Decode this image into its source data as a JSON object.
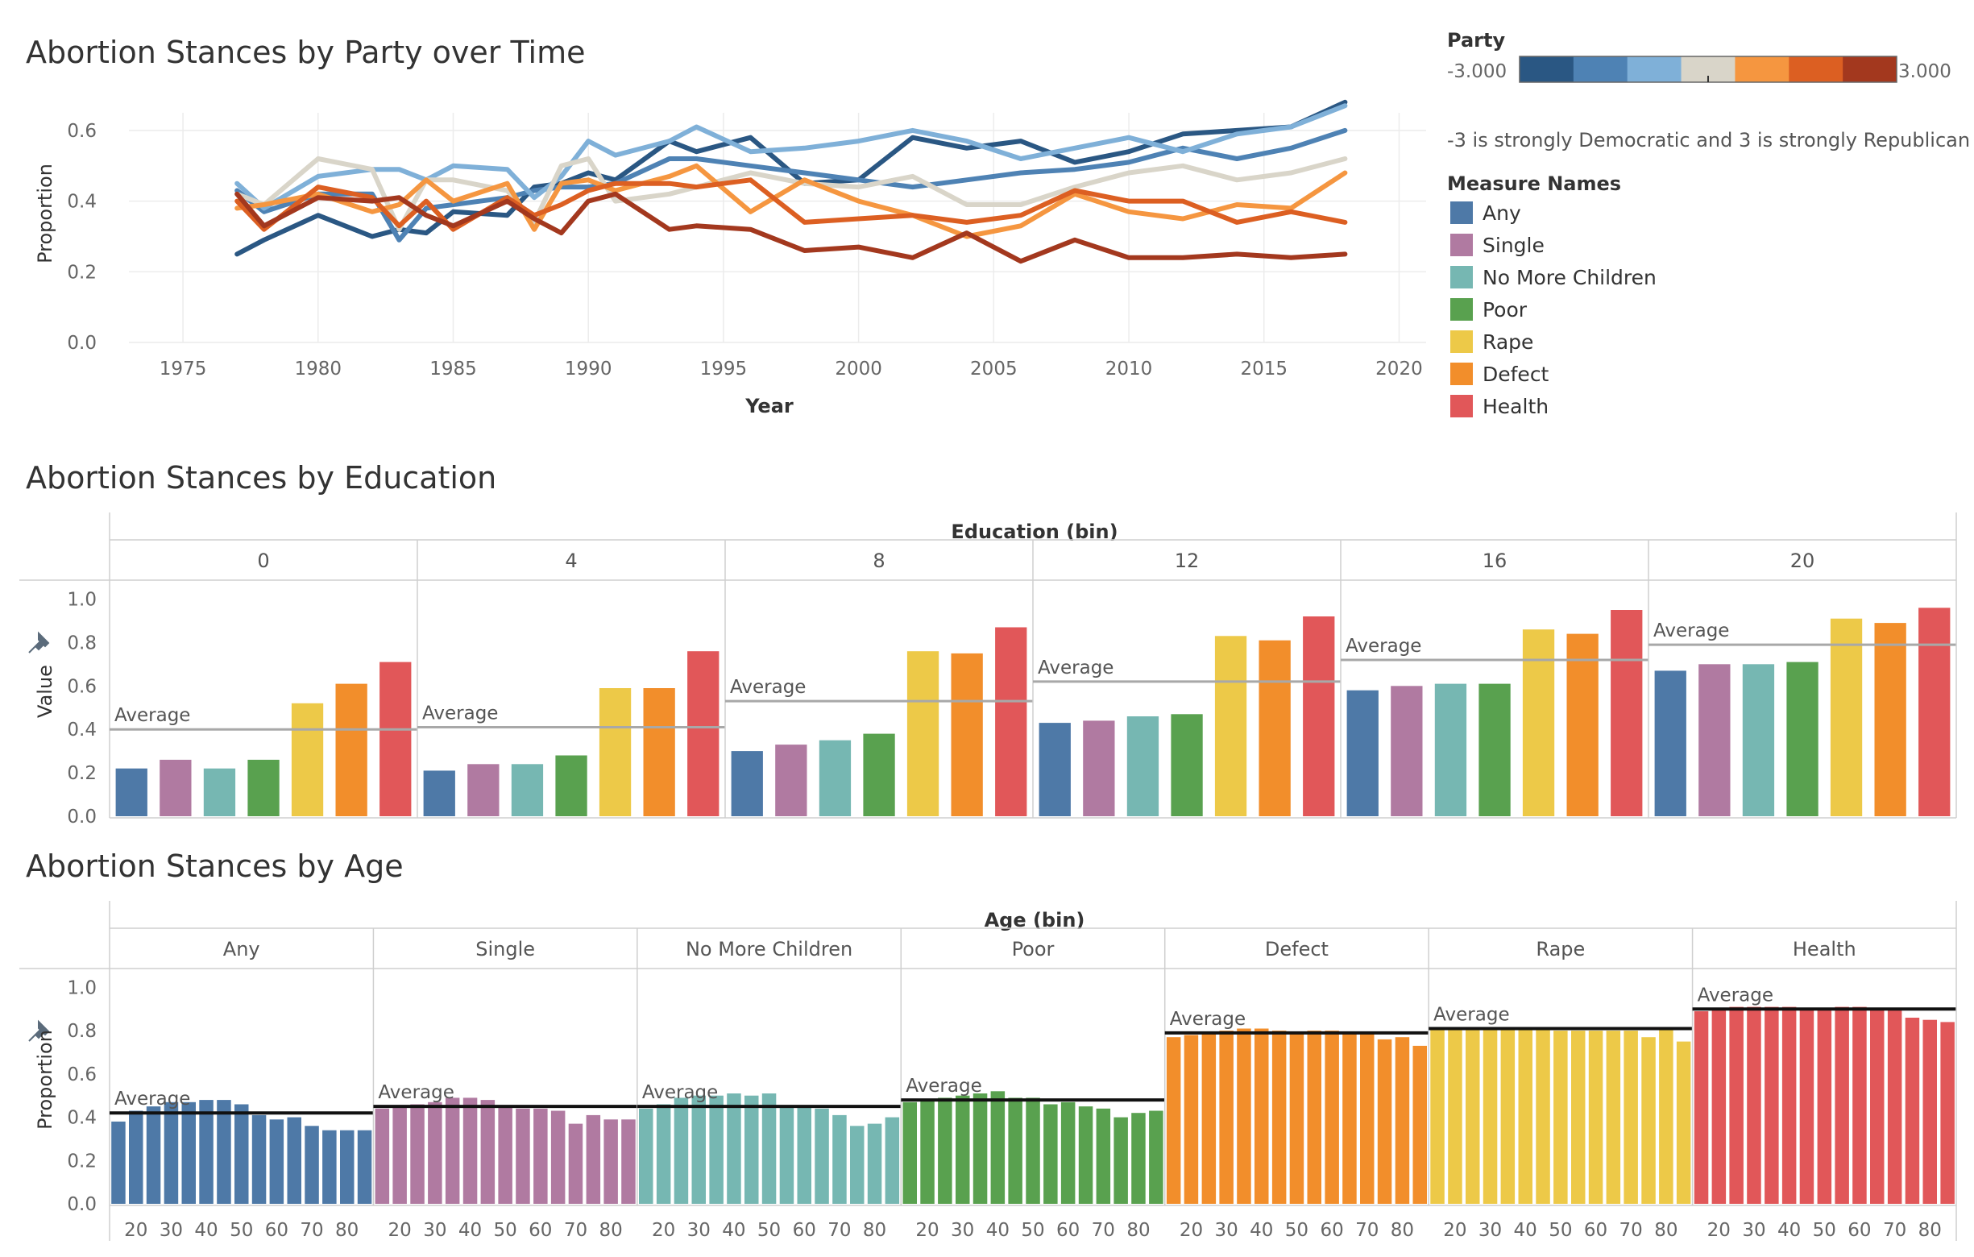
{
  "colors": {
    "Any": "#4e79a7",
    "Single": "#b07aa1",
    "No More Children": "#76b7b2",
    "Poor": "#59a14f",
    "Rape": "#edc948",
    "Defect": "#f28e2b",
    "Health": "#e15759",
    "party": [
      "#2a5783",
      "#4e82b4",
      "#7fb0d8",
      "#d9d5c9",
      "#f59640",
      "#dc5f22",
      "#a3381e"
    ]
  },
  "party_chart": {
    "title": "Abortion Stances by Party over Time",
    "xlabel": "Year",
    "ylabel": "Proportion",
    "legend": {
      "title": "Party",
      "min_label": "-3.000",
      "max_label": "3.000",
      "note": "-3 is strongly Democratic and 3 is strongly Republican"
    }
  },
  "measure_legend": {
    "title": "Measure Names",
    "items": [
      "Any",
      "Single",
      "No More Children",
      "Poor",
      "Rape",
      "Defect",
      "Health"
    ]
  },
  "education_chart": {
    "title": "Abortion Stances by Education",
    "header_title": "Education (bin)",
    "ylabel": "Value",
    "avg_label": "Average"
  },
  "age_chart": {
    "title": "Abortion Stances by Age",
    "header_title": "Age (bin)",
    "ylabel": "Proportion",
    "avg_label": "Average"
  },
  "chart_data": [
    {
      "type": "line",
      "title": "Abortion Stances by Party over Time",
      "xlabel": "Year",
      "ylabel": "Proportion",
      "xlim": [
        1973,
        2021
      ],
      "ylim": [
        0,
        0.65
      ],
      "x_ticks": [
        1975,
        1980,
        1985,
        1990,
        1995,
        2000,
        2005,
        2010,
        2015,
        2020
      ],
      "y_ticks": [
        0.0,
        0.2,
        0.4,
        0.6
      ],
      "x": [
        1977,
        1978,
        1980,
        1982,
        1983,
        1984,
        1985,
        1987,
        1988,
        1989,
        1990,
        1991,
        1993,
        1994,
        1996,
        1998,
        2000,
        2002,
        2004,
        2006,
        2008,
        2010,
        2012,
        2014,
        2016,
        2018
      ],
      "series": [
        {
          "party": -3,
          "values": [
            0.25,
            0.29,
            0.36,
            0.3,
            0.32,
            0.31,
            0.37,
            0.36,
            0.44,
            0.45,
            0.48,
            0.46,
            0.57,
            0.54,
            0.58,
            0.45,
            0.46,
            0.58,
            0.55,
            0.57,
            0.51,
            0.54,
            0.59,
            0.6,
            0.61,
            0.68
          ]
        },
        {
          "party": -2,
          "values": [
            0.43,
            0.37,
            0.42,
            0.42,
            0.29,
            0.38,
            0.39,
            0.41,
            0.43,
            0.44,
            0.44,
            0.45,
            0.52,
            0.52,
            0.5,
            0.48,
            0.46,
            0.44,
            0.46,
            0.48,
            0.49,
            0.51,
            0.55,
            0.52,
            0.55,
            0.6
          ]
        },
        {
          "party": -1,
          "values": [
            0.45,
            0.38,
            0.47,
            0.49,
            0.49,
            0.46,
            0.5,
            0.49,
            0.41,
            0.47,
            0.57,
            0.53,
            0.57,
            0.61,
            0.54,
            0.55,
            0.57,
            0.6,
            0.57,
            0.52,
            0.55,
            0.58,
            0.54,
            0.59,
            0.61,
            0.67
          ]
        },
        {
          "party": 0,
          "values": [
            0.42,
            0.39,
            0.52,
            0.49,
            0.32,
            0.46,
            0.46,
            0.43,
            0.34,
            0.5,
            0.52,
            0.4,
            0.42,
            0.44,
            0.48,
            0.45,
            0.44,
            0.47,
            0.39,
            0.39,
            0.44,
            0.48,
            0.5,
            0.46,
            0.48,
            0.52
          ]
        },
        {
          "party": 1,
          "values": [
            0.38,
            0.39,
            0.42,
            0.37,
            0.39,
            0.46,
            0.4,
            0.45,
            0.32,
            0.45,
            0.46,
            0.43,
            0.47,
            0.5,
            0.37,
            0.46,
            0.4,
            0.36,
            0.3,
            0.33,
            0.42,
            0.37,
            0.35,
            0.39,
            0.38,
            0.48
          ]
        },
        {
          "party": 2,
          "values": [
            0.4,
            0.32,
            0.44,
            0.41,
            0.33,
            0.4,
            0.32,
            0.41,
            0.36,
            0.39,
            0.43,
            0.45,
            0.45,
            0.44,
            0.46,
            0.34,
            0.35,
            0.36,
            0.34,
            0.36,
            0.43,
            0.4,
            0.4,
            0.34,
            0.37,
            0.34
          ]
        },
        {
          "party": 3,
          "values": [
            0.42,
            0.33,
            0.41,
            0.4,
            0.41,
            0.36,
            0.33,
            0.4,
            0.35,
            0.31,
            0.4,
            0.42,
            0.32,
            0.33,
            0.32,
            0.26,
            0.27,
            0.24,
            0.31,
            0.23,
            0.29,
            0.24,
            0.24,
            0.25,
            0.24,
            0.25
          ]
        }
      ]
    },
    {
      "type": "bar",
      "title": "Abortion Stances by Education",
      "ylabel": "Value",
      "ylim": [
        0,
        1.05
      ],
      "y_ticks": [
        0.0,
        0.2,
        0.4,
        0.6,
        0.8,
        1.0
      ],
      "panels": [
        "0",
        "4",
        "8",
        "12",
        "16",
        "20"
      ],
      "categories": [
        "Any",
        "Single",
        "No More Children",
        "Poor",
        "Rape",
        "Defect",
        "Health"
      ],
      "values": [
        [
          0.22,
          0.26,
          0.22,
          0.26,
          0.52,
          0.61,
          0.71
        ],
        [
          0.21,
          0.24,
          0.24,
          0.28,
          0.59,
          0.59,
          0.76
        ],
        [
          0.3,
          0.33,
          0.35,
          0.38,
          0.76,
          0.75,
          0.87
        ],
        [
          0.43,
          0.44,
          0.46,
          0.47,
          0.83,
          0.81,
          0.92
        ],
        [
          0.58,
          0.6,
          0.61,
          0.61,
          0.86,
          0.84,
          0.95
        ],
        [
          0.67,
          0.7,
          0.7,
          0.71,
          0.91,
          0.89,
          0.96
        ]
      ],
      "averages": [
        0.4,
        0.41,
        0.53,
        0.62,
        0.72,
        0.79
      ]
    },
    {
      "type": "bar",
      "title": "Abortion Stances by Age",
      "ylabel": "Proportion",
      "ylim": [
        0,
        1.05
      ],
      "y_ticks": [
        0.0,
        0.2,
        0.4,
        0.6,
        0.8,
        1.0
      ],
      "panels": [
        "Any",
        "Single",
        "No More Children",
        "Poor",
        "Defect",
        "Rape",
        "Health"
      ],
      "age_bins": [
        15,
        20,
        25,
        30,
        35,
        40,
        45,
        50,
        55,
        60,
        65,
        70,
        75,
        80,
        85
      ],
      "age_tick_labels": [
        "20",
        "30",
        "40",
        "50",
        "60",
        "70",
        "80"
      ],
      "values": [
        [
          0.38,
          0.43,
          0.45,
          0.47,
          0.47,
          0.48,
          0.48,
          0.46,
          0.41,
          0.39,
          0.4,
          0.36,
          0.34,
          0.34,
          0.34
        ],
        [
          0.44,
          0.45,
          0.46,
          0.47,
          0.49,
          0.49,
          0.48,
          0.45,
          0.44,
          0.44,
          0.43,
          0.37,
          0.41,
          0.39,
          0.39
        ],
        [
          0.44,
          0.46,
          0.49,
          0.5,
          0.5,
          0.51,
          0.5,
          0.51,
          0.45,
          0.45,
          0.44,
          0.41,
          0.36,
          0.37,
          0.4
        ],
        [
          0.47,
          0.48,
          0.49,
          0.5,
          0.51,
          0.52,
          0.49,
          0.49,
          0.46,
          0.47,
          0.45,
          0.44,
          0.4,
          0.42,
          0.43
        ],
        [
          0.77,
          0.78,
          0.79,
          0.8,
          0.81,
          0.81,
          0.8,
          0.79,
          0.8,
          0.8,
          0.79,
          0.79,
          0.76,
          0.77,
          0.73
        ],
        [
          0.81,
          0.81,
          0.81,
          0.81,
          0.81,
          0.81,
          0.81,
          0.8,
          0.8,
          0.8,
          0.8,
          0.8,
          0.77,
          0.81,
          0.75
        ],
        [
          0.89,
          0.9,
          0.91,
          0.91,
          0.91,
          0.91,
          0.9,
          0.9,
          0.91,
          0.91,
          0.9,
          0.9,
          0.86,
          0.85,
          0.84
        ]
      ],
      "averages": [
        0.42,
        0.45,
        0.45,
        0.48,
        0.79,
        0.81,
        0.9
      ]
    }
  ]
}
